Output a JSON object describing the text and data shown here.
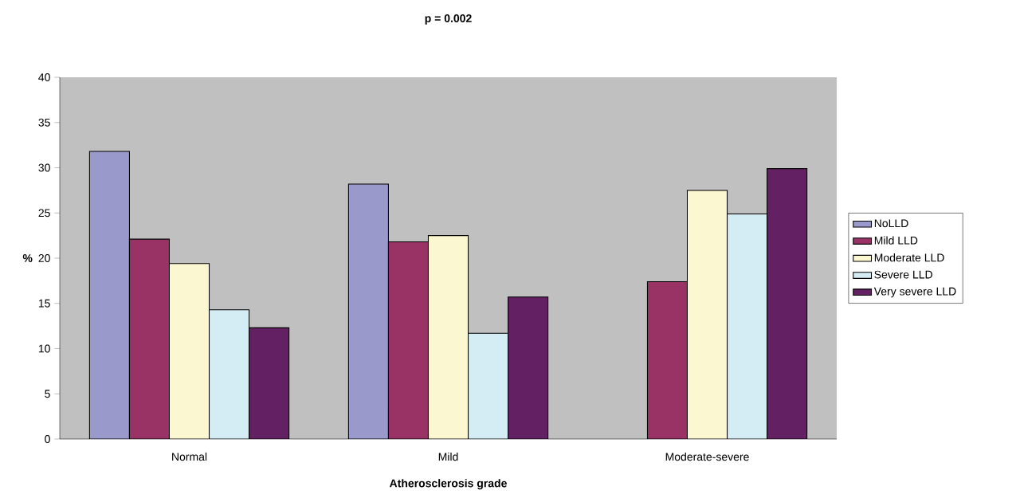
{
  "chart_data": {
    "type": "bar",
    "title": "p = 0.002",
    "xlabel": "Atherosclerosis grade",
    "ylabel": "%",
    "categories": [
      "Normal",
      "Mild",
      "Moderate-severe"
    ],
    "series": [
      {
        "name": "NoLLD",
        "color": "#9999cc",
        "values": [
          31.8,
          28.2,
          null
        ]
      },
      {
        "name": "Mild LLD",
        "color": "#993366",
        "values": [
          22.1,
          21.8,
          17.4
        ]
      },
      {
        "name": "Moderate LLD",
        "color": "#fbf7d0",
        "values": [
          19.4,
          22.5,
          27.5
        ]
      },
      {
        "name": "Severe LLD",
        "color": "#d4ecf4",
        "values": [
          14.3,
          11.7,
          24.9
        ]
      },
      {
        "name": "Very severe LLD",
        "color": "#632062",
        "values": [
          12.3,
          15.7,
          29.9
        ]
      }
    ],
    "ylim": [
      0,
      40
    ],
    "yticks": [
      0,
      5,
      10,
      15,
      20,
      25,
      30,
      35,
      40
    ],
    "legend": "right"
  }
}
